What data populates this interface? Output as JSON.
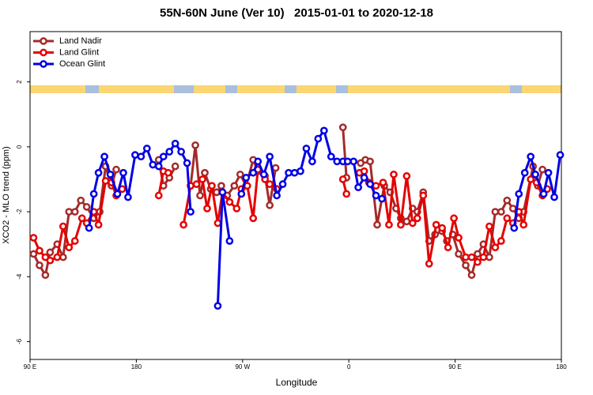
{
  "chart_data": {
    "type": "line",
    "title": "55N-60N June (Ver 10)   2015-01-01 to 2020-12-18",
    "x_label": "Longitude",
    "y_label": "XCO2 - MLO trend (ppm)",
    "xlim": [
      90,
      540
    ],
    "ylim": [
      -6.55,
      3.55
    ],
    "xticks": [
      {
        "value": 90,
        "label": "90 E"
      },
      180,
      {
        "value": 270,
        "label": "90 W"
      },
      {
        "value": 360,
        "label": "0"
      },
      {
        "value": 450,
        "label": "90 E"
      },
      {
        "value": 540,
        "label": "180"
      }
    ],
    "yticks": [
      -6,
      -4,
      -2,
      0,
      2
    ],
    "legend": "top-left",
    "series": [
      {
        "name": "Land Nadir",
        "color": "#a52a2a",
        "x": [
          93,
          98,
          103,
          107,
          113,
          118,
          123,
          128,
          133,
          138,
          144,
          149,
          154,
          159,
          163,
          null,
          199,
          203,
          208,
          213,
          null,
          226,
          230,
          234,
          238,
          243,
          248,
          252,
          257,
          263,
          268,
          273,
          279,
          283,
          289,
          293,
          298,
          null,
          355,
          358,
          null,
          370,
          374,
          378,
          384,
          390,
          395,
          400,
          404,
          409,
          414,
          418,
          423,
          428,
          433,
          439,
          443,
          448,
          453,
          459,
          464,
          469,
          474,
          479,
          484,
          489,
          494,
          499,
          504,
          508,
          516,
          520,
          524
        ],
        "values": [
          -3.3,
          -3.65,
          -3.95,
          -3.25,
          -3.0,
          -3.4,
          -2.0,
          -2.0,
          -1.65,
          -1.85,
          -2.2,
          -2.0,
          -0.6,
          -1.2,
          -0.7,
          null,
          -0.4,
          -1.2,
          -0.95,
          -0.6,
          null,
          -1.2,
          0.05,
          -1.5,
          -0.8,
          -1.3,
          -1.4,
          -1.2,
          -1.5,
          -1.2,
          -0.85,
          -1.2,
          -0.4,
          -0.75,
          -0.9,
          -1.8,
          -0.65,
          null,
          0.6,
          -0.95,
          null,
          -0.5,
          -0.4,
          -0.45,
          -2.4,
          -1.2,
          -1.4,
          -1.9,
          -2.2,
          -2.3,
          -1.9,
          -2.0,
          -1.4,
          -2.9,
          -2.7,
          -2.6,
          -2.9,
          -2.7,
          -3.3,
          -3.65,
          -3.95,
          -3.3,
          -3.0,
          -3.4,
          -2.0,
          -2.0,
          -1.65,
          -1.9,
          -2.2,
          -2.0,
          -0.6,
          -1.2,
          -0.7
        ]
      },
      {
        "name": "Land Glint",
        "color": "#e60000",
        "x": [
          93,
          98,
          103,
          107,
          113,
          118,
          123,
          128,
          134,
          138,
          144,
          148,
          154,
          159,
          163,
          168,
          null,
          199,
          203,
          207,
          null,
          220,
          226,
          231,
          236,
          240,
          244,
          249,
          253,
          259,
          265,
          269,
          274,
          279,
          283,
          289,
          293,
          299,
          null,
          355,
          358,
          null,
          369,
          373,
          377,
          383,
          389,
          394,
          398,
          404,
          409,
          414,
          418,
          423,
          428,
          434,
          439,
          444,
          449,
          453,
          459,
          464,
          469,
          474,
          479,
          484,
          489,
          494,
          499,
          504,
          508,
          514,
          519,
          524,
          528
        ],
        "values": [
          -2.8,
          -3.2,
          -3.4,
          -3.5,
          -3.4,
          -2.45,
          -3.1,
          -2.9,
          -2.2,
          -2.35,
          -2.0,
          -2.4,
          -1.05,
          -1.1,
          -1.5,
          -1.3,
          null,
          -1.5,
          -0.75,
          -0.8,
          null,
          -2.4,
          -1.2,
          -1.15,
          -1.0,
          -1.9,
          -1.2,
          -2.35,
          -1.4,
          -1.7,
          -1.9,
          -1.3,
          -1.2,
          -2.2,
          -0.7,
          -1.0,
          -1.15,
          -1.3,
          null,
          -1.0,
          -1.45,
          null,
          -0.8,
          -0.75,
          -1.1,
          -1.2,
          -1.1,
          -2.4,
          -0.85,
          -2.4,
          -0.9,
          -2.35,
          -2.2,
          -1.5,
          -3.6,
          -2.4,
          -2.5,
          -3.1,
          -2.2,
          -2.8,
          -3.4,
          -3.4,
          -3.55,
          -3.4,
          -2.45,
          -3.1,
          -2.9,
          -2.2,
          -2.35,
          -2.0,
          -2.4,
          -1.0,
          -1.1,
          -1.5,
          -1.3
        ]
      },
      {
        "name": "Ocean Glint",
        "color": "#0000e6",
        "x": [
          140,
          144,
          148,
          153,
          158,
          164,
          169,
          173,
          179,
          184,
          189,
          194,
          199,
          203,
          208,
          213,
          218,
          223,
          226,
          null,
          249,
          253,
          259,
          null,
          269,
          273,
          279,
          283,
          288,
          293,
          299,
          304,
          309,
          314,
          319,
          324,
          329,
          334,
          339,
          345,
          350,
          355,
          359,
          364,
          368,
          373,
          378,
          383,
          388,
          null,
          500,
          504,
          509,
          514,
          518,
          525,
          529,
          534,
          539
        ],
        "values": [
          -2.5,
          -1.45,
          -0.8,
          -0.3,
          -0.85,
          -1.45,
          -0.8,
          -1.55,
          -0.25,
          -0.3,
          -0.05,
          -0.55,
          -0.6,
          -0.3,
          -0.15,
          0.1,
          -0.15,
          -0.5,
          -2.0,
          null,
          -4.9,
          -1.4,
          -2.9,
          null,
          -1.45,
          -0.95,
          -0.8,
          -0.45,
          -0.85,
          -0.3,
          -1.5,
          -1.15,
          -0.8,
          -0.8,
          -0.75,
          -0.05,
          -0.45,
          0.25,
          0.5,
          -0.3,
          -0.45,
          -0.45,
          -0.45,
          -0.45,
          -1.25,
          -0.95,
          -1.15,
          -1.5,
          -1.6,
          null,
          -2.5,
          -1.45,
          -0.8,
          -0.3,
          -0.85,
          -1.45,
          -0.8,
          -1.55,
          -0.25
        ]
      }
    ]
  }
}
